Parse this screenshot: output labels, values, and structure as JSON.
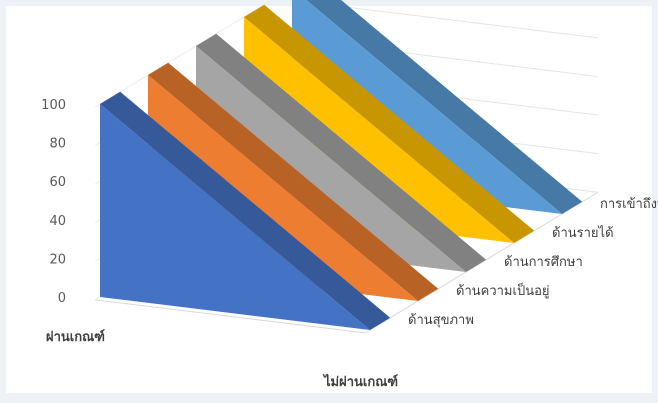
{
  "chart_data": {
    "type": "area",
    "subtype": "3d-area",
    "categories": [
      "ผ่านเกณฑ์",
      "ไม่ผ่านเกณฑ์"
    ],
    "series": [
      {
        "name": "ด้านสุขภาพ",
        "values": [
          100,
          0
        ],
        "color": "#4472c4"
      },
      {
        "name": "ด้านความเป็นอยู่",
        "values": [
          100,
          0
        ],
        "color": "#ed7d31"
      },
      {
        "name": "ด้านการศึกษา",
        "values": [
          100,
          0
        ],
        "color": "#a5a5a5"
      },
      {
        "name": "ด้านรายได้",
        "values": [
          100,
          0
        ],
        "color": "#ffc000"
      },
      {
        "name": "การเข้าถึงบริการรัฐ",
        "values": [
          100,
          0
        ],
        "color": "#5b9bd5"
      }
    ],
    "y_ticks": [
      "0",
      "20",
      "40",
      "60",
      "80",
      "100"
    ],
    "ylim": [
      0,
      100
    ],
    "grid": true,
    "title": "",
    "xlabel": "",
    "ylabel": ""
  }
}
